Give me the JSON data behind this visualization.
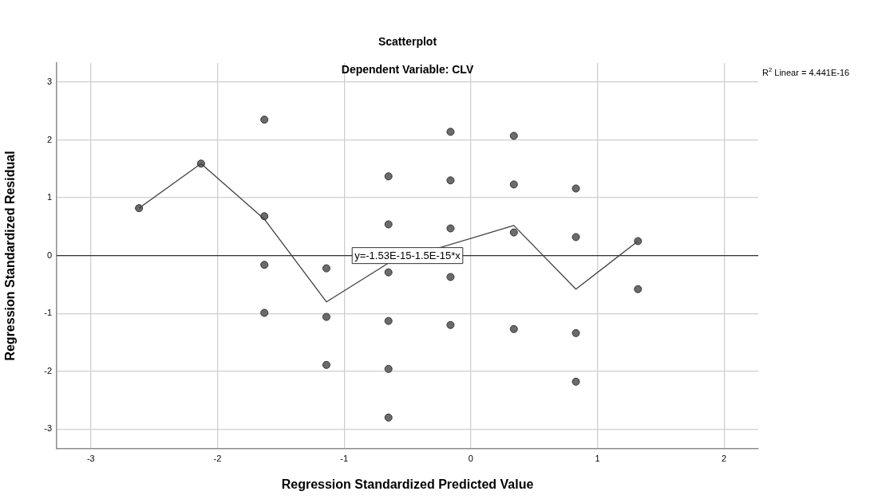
{
  "chart_data": {
    "type": "scatter",
    "title": "Scatterplot",
    "subtitle": "Dependent Variable: CLV",
    "xlabel": "Regression Standardized Predicted Value",
    "ylabel": "Regression Standardized Residual",
    "series": [
      {
        "color": "#6b6b6b",
        "marker": "circle",
        "x": [
          -2.62,
          -2.13,
          -1.63,
          -1.63,
          -1.63,
          -1.63,
          -1.14,
          -1.14,
          -1.14,
          -0.65,
          -0.65,
          -0.65,
          -0.65,
          -0.65,
          -0.65,
          -0.16,
          -0.16,
          -0.16,
          -0.16,
          -0.16,
          0.34,
          0.34,
          0.34,
          0.34,
          0.83,
          0.83,
          0.83,
          0.83,
          1.32,
          1.32
        ],
        "values": [
          0.82,
          1.59,
          2.35,
          0.68,
          -0.16,
          -0.99,
          -0.22,
          -1.06,
          -1.89,
          1.37,
          0.54,
          -0.29,
          -1.13,
          -1.96,
          -2.8,
          2.14,
          1.3,
          0.47,
          -0.37,
          -1.2,
          2.07,
          1.23,
          0.4,
          -1.27,
          1.16,
          0.32,
          -1.34,
          -2.18,
          0.25,
          -0.58
        ]
      },
      {
        "type": "line",
        "color": "#404040",
        "marker": "none",
        "line_style": "solid",
        "x": [
          -2.62,
          -2.13,
          -1.63,
          -1.14,
          -0.65,
          -0.16,
          0.34,
          0.83,
          1.32
        ],
        "values": [
          0.82,
          1.59,
          0.63,
          -0.8,
          -0.13,
          null,
          0.52,
          -0.58,
          0.25
        ]
      }
    ],
    "xlim": [
      -3.27,
      2.27
    ],
    "xticks": [
      -3,
      -2,
      -1,
      0,
      1,
      2
    ],
    "ylim": [
      -3.34,
      3.33
    ],
    "yticks": [
      -3,
      -2,
      -1,
      0,
      1,
      2,
      3
    ],
    "grid": true,
    "ref_lines": [
      {
        "axis": "y",
        "value": 0,
        "color": "#333333"
      }
    ],
    "annotations": [
      {
        "text": "y=-1.53E-15-1.5E-15*x",
        "x": -0.5,
        "y": 0
      },
      "R$^{2}$ Linear = 4.441E-16"
    ]
  }
}
